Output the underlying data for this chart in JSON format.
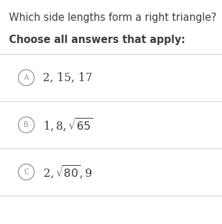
{
  "title": "Which side lengths form a right triangle?",
  "subtitle": "Choose all answers that apply:",
  "bg_color": "#ffffff",
  "text_color": "#3d3d3d",
  "circle_edge_color": "#9a9a9a",
  "label_color": "#9a9a9a",
  "line_color": "#d0d0d0",
  "options": [
    {
      "label": "A",
      "text_plain": "2, 15, 17",
      "has_sqrt": false
    },
    {
      "label": "B",
      "text_before": "1, 8, ",
      "sqrt_num": "65",
      "text_after": "",
      "has_sqrt": true
    },
    {
      "label": "C",
      "text_before": "2, ",
      "sqrt_num": "80",
      "text_after": ", 9",
      "has_sqrt": true
    }
  ],
  "title_fontsize": 10.5,
  "subtitle_fontsize": 10.5,
  "option_fontsize": 11.5,
  "label_fontsize": 7.5,
  "figsize": [
    3.21,
    3.23
  ],
  "dpi": 100
}
